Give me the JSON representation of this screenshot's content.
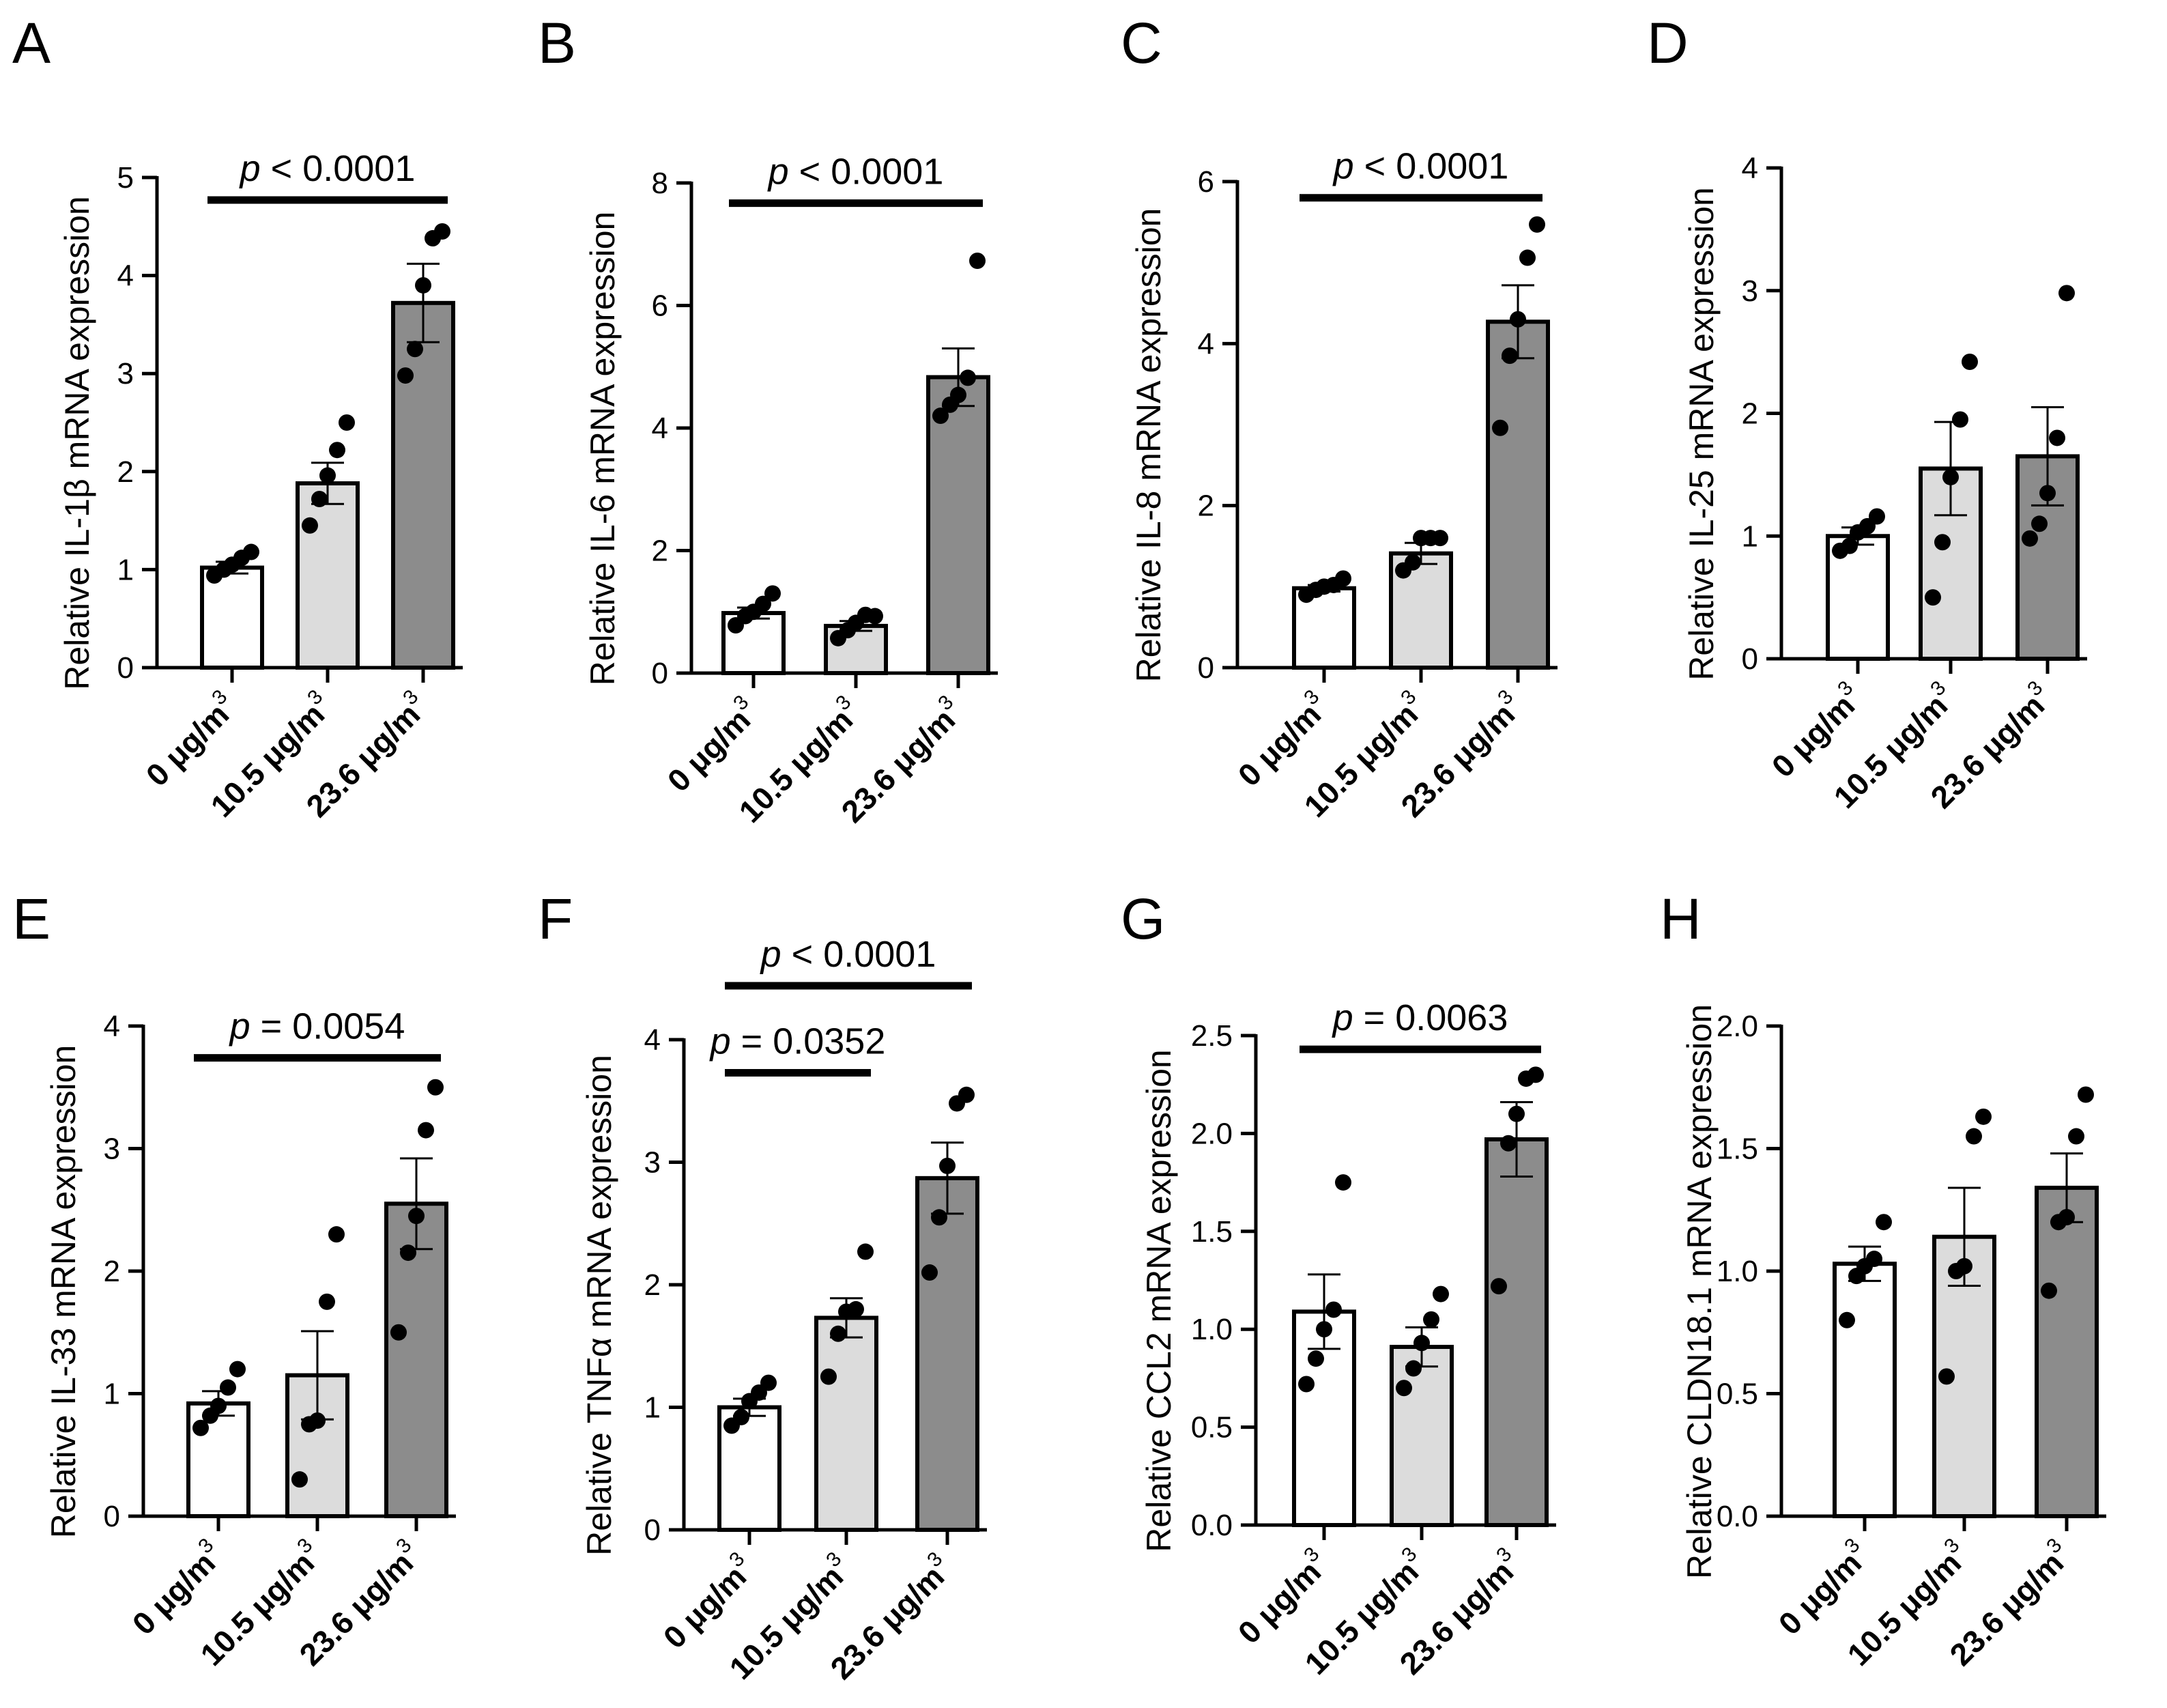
{
  "chart_data": [
    {
      "type": "bar",
      "panel": "A",
      "categories": [
        "0 μg/m",
        "10.5 μg/m",
        "23.6 μg/m"
      ],
      "category_superscript": "3",
      "ylabel": "Relative IL-1β mRNA expression",
      "ylim": [
        0,
        5
      ],
      "yticks": [
        "0",
        "1",
        "2",
        "3",
        "4",
        "5"
      ],
      "yticks_values": [
        0,
        1,
        2,
        3,
        4,
        5
      ],
      "values": [
        1.02,
        1.88,
        3.72
      ],
      "sem": [
        0.06,
        0.21,
        0.4
      ],
      "points": [
        [
          0.94,
          1.0,
          1.05,
          1.12,
          1.18
        ],
        [
          1.45,
          1.72,
          1.96,
          2.22,
          2.5
        ],
        [
          2.98,
          3.25,
          3.9,
          4.38,
          4.45
        ]
      ],
      "colors": [
        "#ffffff",
        "#dcdcdc",
        "#8c8c8c"
      ],
      "comparisons": [
        {
          "from": 0,
          "to": 2,
          "p_label": "p",
          "p_rest": " < 0.0001",
          "bar_y": 4.77
        }
      ]
    },
    {
      "type": "bar",
      "panel": "B",
      "categories": [
        "0 μg/m",
        "10.5 μg/m",
        "23.6 μg/m"
      ],
      "category_superscript": "3",
      "ylabel": "Relative IL-6 mRNA expression",
      "ylim": [
        0,
        8
      ],
      "yticks": [
        "0",
        "2",
        "4",
        "6",
        "8"
      ],
      "yticks_values": [
        0,
        2,
        4,
        6,
        8
      ],
      "values": [
        0.98,
        0.77,
        4.83
      ],
      "sem": [
        0.09,
        0.08,
        0.47
      ],
      "points": [
        [
          0.78,
          0.93,
          1.0,
          1.13,
          1.3
        ],
        [
          0.57,
          0.7,
          0.82,
          0.95,
          0.93
        ],
        [
          4.2,
          4.38,
          4.54,
          4.82,
          6.73
        ]
      ],
      "colors": [
        "#ffffff",
        "#dcdcdc",
        "#8c8c8c"
      ],
      "comparisons": [
        {
          "from": 0,
          "to": 2,
          "p_label": "p",
          "p_rest": " < 0.0001",
          "bar_y": 7.67
        }
      ]
    },
    {
      "type": "bar",
      "panel": "C",
      "categories": [
        "0 μg/m",
        "10.5 μg/m",
        "23.6 μg/m"
      ],
      "category_superscript": "3",
      "ylabel": "Relative IL-8 mRNA expression",
      "ylim": [
        0,
        6
      ],
      "yticks": [
        "0",
        "2",
        "4",
        "6"
      ],
      "yticks_values": [
        0,
        2,
        4,
        6
      ],
      "values": [
        0.98,
        1.41,
        4.27
      ],
      "sem": [
        0.04,
        0.13,
        0.45
      ],
      "points": [
        [
          0.9,
          0.96,
          1.0,
          1.02,
          1.1
        ],
        [
          1.2,
          1.3,
          1.6,
          1.6,
          1.6
        ],
        [
          2.96,
          3.85,
          4.3,
          5.06,
          5.47
        ]
      ],
      "colors": [
        "#ffffff",
        "#dcdcdc",
        "#8c8c8c"
      ],
      "comparisons": [
        {
          "from": 0,
          "to": 2,
          "p_label": "p",
          "p_rest": " < 0.0001",
          "bar_y": 5.8
        }
      ]
    },
    {
      "type": "bar",
      "panel": "D",
      "categories": [
        "0 μg/m",
        "10.5 μg/m",
        "23.6 μg/m"
      ],
      "category_superscript": "3",
      "ylabel": "Relative IL-25 mRNA expression",
      "ylim": [
        0,
        4
      ],
      "yticks": [
        "0",
        "1",
        "2",
        "3",
        "4"
      ],
      "yticks_values": [
        0,
        1,
        2,
        3,
        4
      ],
      "values": [
        1.0,
        1.55,
        1.65
      ],
      "sem": [
        0.07,
        0.38,
        0.4
      ],
      "points": [
        [
          0.88,
          0.92,
          1.03,
          1.08,
          1.16
        ],
        [
          0.5,
          0.95,
          1.48,
          1.95,
          2.42
        ],
        [
          0.98,
          1.1,
          1.35,
          1.8,
          2.98
        ]
      ],
      "colors": [
        "#ffffff",
        "#dcdcdc",
        "#8c8c8c"
      ],
      "comparisons": []
    },
    {
      "type": "bar",
      "panel": "E",
      "categories": [
        "0 μg/m",
        "10.5 μg/m",
        "23.6 μg/m"
      ],
      "category_superscript": "3",
      "ylabel": "Relative IL-33 mRNA expression",
      "ylim": [
        0,
        4
      ],
      "yticks": [
        "0",
        "1",
        "2",
        "3",
        "4"
      ],
      "yticks_values": [
        0,
        1,
        2,
        3,
        4
      ],
      "values": [
        0.92,
        1.15,
        2.55
      ],
      "sem": [
        0.1,
        0.36,
        0.37
      ],
      "points": [
        [
          0.72,
          0.82,
          0.9,
          1.05,
          1.2
        ],
        [
          0.3,
          0.75,
          0.78,
          1.75,
          2.3
        ],
        [
          1.5,
          2.15,
          2.45,
          3.15,
          3.5
        ]
      ],
      "colors": [
        "#ffffff",
        "#dcdcdc",
        "#8c8c8c"
      ],
      "comparisons": [
        {
          "from": 0,
          "to": 2,
          "p_label": "p",
          "p_rest": " = 0.0054",
          "bar_y": 3.74
        }
      ]
    },
    {
      "type": "bar",
      "panel": "F",
      "categories": [
        "0 μg/m",
        "10.5 μg/m",
        "23.6 μg/m"
      ],
      "category_superscript": "3",
      "ylabel": "Relative TNFα mRNA expression",
      "ylim": [
        0,
        4
      ],
      "yticks": [
        "0",
        "1",
        "2",
        "3",
        "4"
      ],
      "yticks_values": [
        0,
        1,
        2,
        3,
        4
      ],
      "values": [
        1.0,
        1.73,
        2.87
      ],
      "sem": [
        0.07,
        0.16,
        0.29
      ],
      "points": [
        [
          0.85,
          0.92,
          1.05,
          1.12,
          1.2
        ],
        [
          1.25,
          1.6,
          1.78,
          1.8,
          2.27
        ],
        [
          2.1,
          2.55,
          2.97,
          3.48,
          3.55
        ]
      ],
      "colors": [
        "#ffffff",
        "#dcdcdc",
        "#8c8c8c"
      ],
      "comparisons": [
        {
          "from": 0,
          "to": 2,
          "p_label": "p",
          "p_rest": " < 0.0001",
          "bar_y": 4.44
        },
        {
          "from": 0,
          "to": 1,
          "p_label": "p",
          "p_rest": " = 0.0352",
          "bar_y": 3.73
        }
      ]
    },
    {
      "type": "bar",
      "panel": "G",
      "categories": [
        "0 μg/m",
        "10.5 μg/m",
        "23.6 μg/m"
      ],
      "category_superscript": "3",
      "ylabel": "Relative CCL2 mRNA expression",
      "ylim": [
        0,
        2.5
      ],
      "yticks": [
        "0.0",
        "0.5",
        "1.0",
        "1.5",
        "2.0",
        "2.5"
      ],
      "yticks_values": [
        0,
        0.5,
        1,
        1.5,
        2,
        2.5
      ],
      "values": [
        1.09,
        0.91,
        1.97
      ],
      "sem": [
        0.19,
        0.1,
        0.19
      ],
      "points": [
        [
          0.72,
          0.85,
          1.0,
          1.1,
          1.75
        ],
        [
          0.7,
          0.8,
          0.93,
          1.05,
          1.18
        ],
        [
          1.22,
          1.95,
          2.1,
          2.28,
          2.3
        ]
      ],
      "colors": [
        "#ffffff",
        "#dcdcdc",
        "#8c8c8c"
      ],
      "comparisons": [
        {
          "from": 0,
          "to": 2,
          "p_label": "p",
          "p_rest": " = 0.0063",
          "bar_y": 2.43
        }
      ]
    },
    {
      "type": "bar",
      "panel": "H",
      "categories": [
        "0 μg/m",
        "10.5 μg/m",
        "23.6 μg/m"
      ],
      "category_superscript": "3",
      "ylabel": "Relative CLDN18.1 mRNA expression",
      "ylim": [
        0,
        2.0
      ],
      "yticks": [
        "0.0",
        "0.5",
        "1.0",
        "1.5",
        "2.0"
      ],
      "yticks_values": [
        0,
        0.5,
        1,
        1.5,
        2
      ],
      "values": [
        1.03,
        1.14,
        1.34
      ],
      "sem": [
        0.07,
        0.2,
        0.14
      ],
      "points": [
        [
          0.8,
          0.98,
          1.02,
          1.05,
          1.2
        ],
        [
          0.57,
          1.0,
          1.02,
          1.55,
          1.63
        ],
        [
          0.92,
          1.2,
          1.22,
          1.55,
          1.72
        ]
      ],
      "colors": [
        "#ffffff",
        "#dcdcdc",
        "#8c8c8c"
      ],
      "comparisons": []
    }
  ]
}
